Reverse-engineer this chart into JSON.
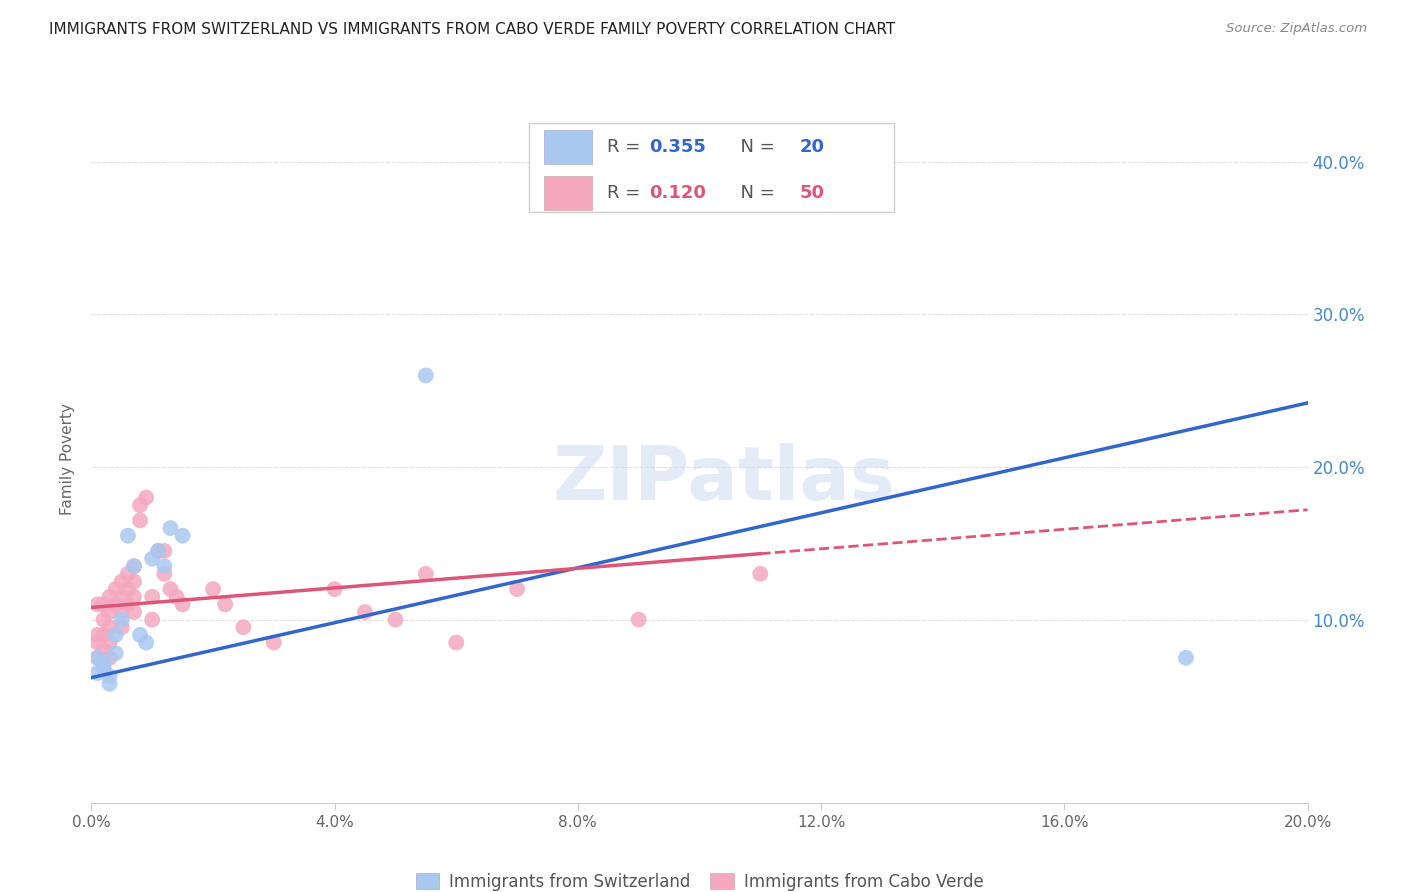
{
  "title": "IMMIGRANTS FROM SWITZERLAND VS IMMIGRANTS FROM CABO VERDE FAMILY POVERTY CORRELATION CHART",
  "source": "Source: ZipAtlas.com",
  "ylabel": "Family Poverty",
  "right_yticks": [
    "10.0%",
    "20.0%",
    "30.0%",
    "40.0%"
  ],
  "right_ytick_vals": [
    0.1,
    0.2,
    0.3,
    0.4
  ],
  "xlim": [
    0.0,
    0.2
  ],
  "ylim": [
    -0.02,
    0.43
  ],
  "swiss_x": [
    0.001,
    0.001,
    0.002,
    0.002,
    0.003,
    0.003,
    0.004,
    0.004,
    0.005,
    0.006,
    0.007,
    0.008,
    0.009,
    0.01,
    0.011,
    0.012,
    0.013,
    0.015,
    0.055,
    0.18
  ],
  "swiss_y": [
    0.075,
    0.065,
    0.072,
    0.068,
    0.063,
    0.058,
    0.09,
    0.078,
    0.1,
    0.155,
    0.135,
    0.09,
    0.085,
    0.14,
    0.145,
    0.135,
    0.16,
    0.155,
    0.26,
    0.075
  ],
  "cabo_x": [
    0.001,
    0.001,
    0.001,
    0.001,
    0.002,
    0.002,
    0.002,
    0.002,
    0.002,
    0.003,
    0.003,
    0.003,
    0.003,
    0.003,
    0.004,
    0.004,
    0.005,
    0.005,
    0.005,
    0.005,
    0.006,
    0.006,
    0.006,
    0.007,
    0.007,
    0.007,
    0.007,
    0.008,
    0.008,
    0.009,
    0.01,
    0.01,
    0.011,
    0.012,
    0.012,
    0.013,
    0.014,
    0.015,
    0.02,
    0.022,
    0.025,
    0.03,
    0.04,
    0.045,
    0.05,
    0.055,
    0.06,
    0.07,
    0.09,
    0.11
  ],
  "cabo_y": [
    0.11,
    0.09,
    0.085,
    0.075,
    0.11,
    0.1,
    0.09,
    0.08,
    0.07,
    0.115,
    0.105,
    0.095,
    0.085,
    0.075,
    0.12,
    0.11,
    0.125,
    0.115,
    0.105,
    0.095,
    0.13,
    0.12,
    0.11,
    0.135,
    0.125,
    0.115,
    0.105,
    0.175,
    0.165,
    0.18,
    0.115,
    0.1,
    0.145,
    0.145,
    0.13,
    0.12,
    0.115,
    0.11,
    0.12,
    0.11,
    0.095,
    0.085,
    0.12,
    0.105,
    0.1,
    0.13,
    0.085,
    0.12,
    0.1,
    0.13
  ],
  "swiss_color": "#a8c8f0",
  "cabo_color": "#f4a8c0",
  "swiss_line_color": "#3366cc",
  "cabo_line_color": "#dd5577",
  "R_swiss": 0.355,
  "N_swiss": 20,
  "R_cabo": 0.12,
  "N_cabo": 50,
  "watermark": "ZIPatlas",
  "background_color": "#ffffff",
  "grid_color": "#e0e0e0",
  "swiss_line_intercept": 0.062,
  "swiss_line_slope": 0.9,
  "cabo_line_intercept": 0.108,
  "cabo_line_slope": 0.32
}
